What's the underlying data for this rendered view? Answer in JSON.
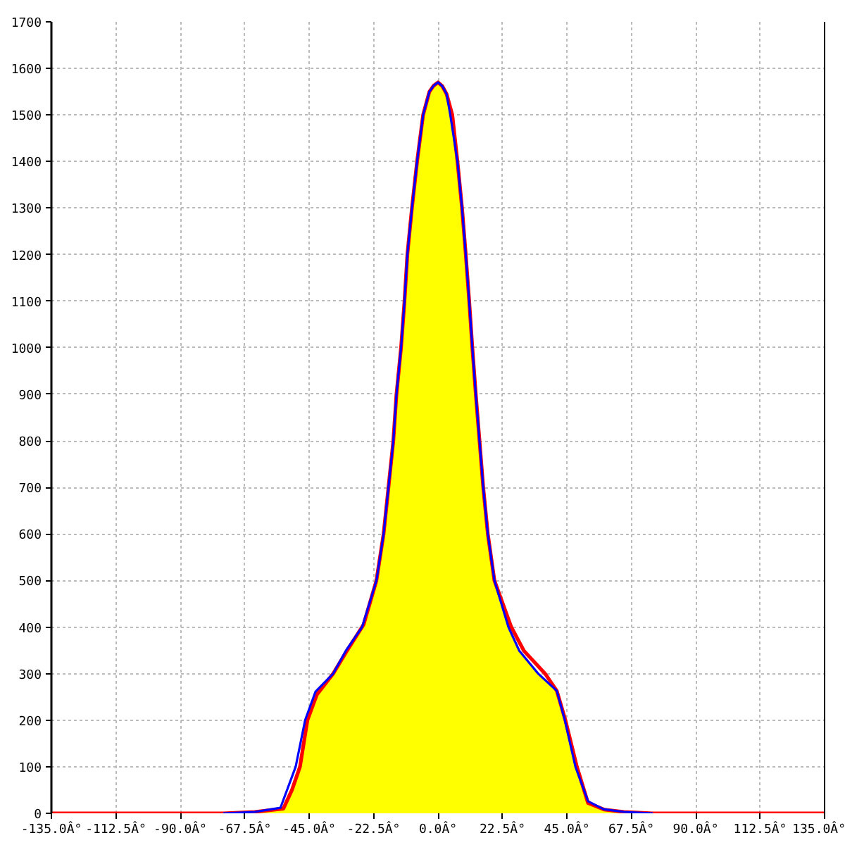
{
  "chart_data": {
    "type": "line",
    "xlim": [
      -135,
      135
    ],
    "ylim": [
      0,
      1700
    ],
    "xticks": [
      {
        "value": -135,
        "label": "-135.0Â°"
      },
      {
        "value": -112.5,
        "label": "-112.5Â°"
      },
      {
        "value": -90,
        "label": "-90.0Â°"
      },
      {
        "value": -67.5,
        "label": "-67.5Â°"
      },
      {
        "value": -45,
        "label": "-45.0Â°"
      },
      {
        "value": -22.5,
        "label": "-22.5Â°"
      },
      {
        "value": 0,
        "label": "0.0Â°"
      },
      {
        "value": 22.5,
        "label": "22.5Â°"
      },
      {
        "value": 45,
        "label": "45.0Â°"
      },
      {
        "value": 67.5,
        "label": "67.5Â°"
      },
      {
        "value": 90,
        "label": "90.0Â°"
      },
      {
        "value": 112.5,
        "label": "112.5Â°"
      },
      {
        "value": 135,
        "label": "135.0Â°"
      }
    ],
    "yticks": [
      0,
      100,
      200,
      300,
      400,
      500,
      600,
      700,
      800,
      900,
      1000,
      1100,
      1200,
      1300,
      1400,
      1500,
      1600,
      1700
    ],
    "grid": true,
    "series": [
      {
        "type": "area",
        "color": "#ffff00",
        "x": [
          -69,
          -64,
          -54,
          -48.2,
          -45.6,
          -42.3,
          -36.6,
          -31.5,
          -26,
          -21.5,
          -19,
          -17.3,
          -15.6,
          -14.5,
          -12.9,
          -11.7,
          -10.7,
          -9.1,
          -7.3,
          -5.2,
          -3,
          -1.5,
          0,
          1.5,
          3,
          4.3,
          6.8,
          8.4,
          9.7,
          10.9,
          12,
          13.2,
          14.5,
          15.8,
          17.4,
          19.7,
          24.6,
          28.4,
          35,
          38.5,
          41.5,
          44.5,
          48.5,
          52.4,
          58,
          65,
          69
        ],
        "values": [
          0,
          3,
          10,
          100,
          200,
          255,
          300,
          352,
          405,
          500,
          600,
          700,
          800,
          900,
          1000,
          1100,
          1200,
          1300,
          1400,
          1500,
          1550,
          1563,
          1570,
          1562,
          1545,
          1500,
          1400,
          1300,
          1200,
          1100,
          1000,
          900,
          800,
          700,
          600,
          500,
          400,
          349,
          300,
          280,
          263,
          200,
          100,
          22,
          8,
          3,
          0
        ]
      },
      {
        "color": "#ff0000",
        "x": [
          -135,
          -75,
          -64,
          -54,
          -51,
          -48.2,
          -45.6,
          -42.3,
          -36.6,
          -31.5,
          -26,
          -21.5,
          -19,
          -17.3,
          -15.6,
          -14.5,
          -12.9,
          -11.7,
          -10.7,
          -9.1,
          -7.3,
          -5.2,
          -3,
          -1.5,
          0,
          1.5,
          3,
          5,
          6.8,
          8.4,
          9.7,
          10.9,
          12,
          13.2,
          14.5,
          15.8,
          17.4,
          19.7,
          25.6,
          30,
          37.4,
          41.5,
          44.5,
          48.5,
          52.4,
          58,
          65,
          75,
          135
        ],
        "values": [
          0,
          0,
          3,
          10,
          50,
          100,
          200,
          255,
          300,
          352,
          405,
          500,
          600,
          700,
          800,
          900,
          1000,
          1100,
          1200,
          1300,
          1400,
          1500,
          1550,
          1563,
          1570,
          1562,
          1545,
          1500,
          1400,
          1300,
          1200,
          1100,
          1000,
          900,
          800,
          700,
          600,
          500,
          400,
          349,
          300,
          263,
          200,
          100,
          22,
          8,
          3,
          0,
          0
        ]
      },
      {
        "color": "#0000ff",
        "x": [
          -75,
          -64,
          -55,
          -49.7,
          -46.4,
          -42.8,
          -36.6,
          -32.2,
          -26.5,
          -21.5,
          -19,
          -17.3,
          -15.6,
          -14.5,
          -12.9,
          -11.7,
          -10.7,
          -9.1,
          -7.3,
          -5.2,
          -3,
          -1.5,
          0,
          1.5,
          3,
          4.3,
          6.8,
          8.4,
          9.7,
          10.9,
          12,
          13.2,
          14.5,
          15.8,
          17.4,
          19.7,
          24.6,
          28.4,
          35,
          38.5,
          41.5,
          44.3,
          48,
          52.4,
          57.8,
          65,
          75
        ],
        "values": [
          0,
          3,
          12,
          100,
          200,
          261,
          300,
          349,
          400,
          500,
          600,
          700,
          800,
          900,
          1000,
          1100,
          1200,
          1300,
          1400,
          1500,
          1550,
          1563,
          1570,
          1562,
          1545,
          1500,
          1400,
          1300,
          1200,
          1100,
          1000,
          900,
          800,
          700,
          600,
          500,
          400,
          349,
          300,
          280,
          263,
          200,
          100,
          26,
          9,
          3,
          0
        ]
      }
    ]
  }
}
